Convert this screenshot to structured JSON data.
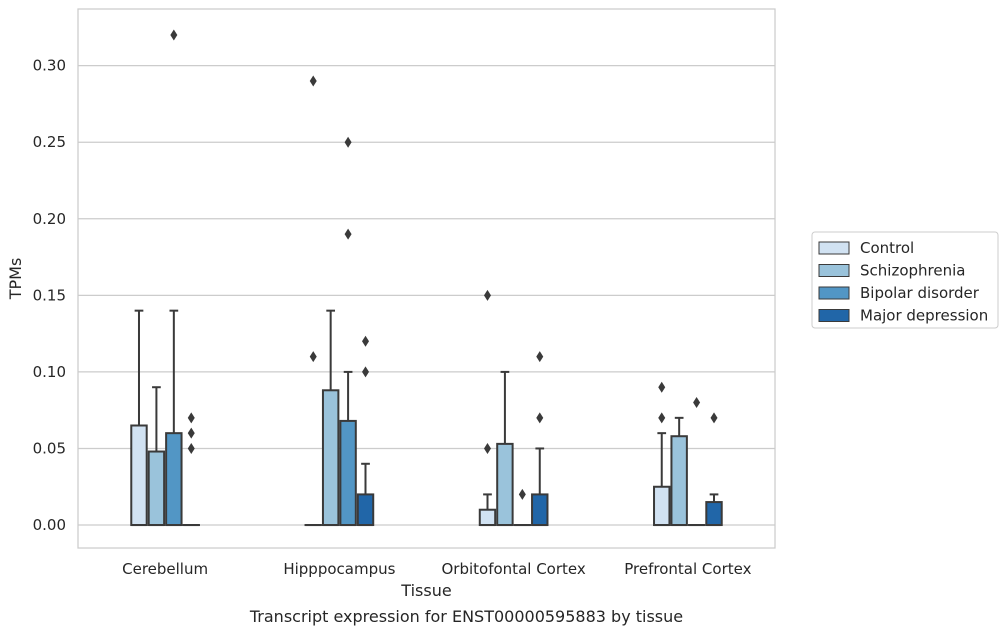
{
  "chart_data": {
    "type": "box",
    "title": "Transcript expression for ENST00000595883 by tissue",
    "xlabel": "Tissue",
    "ylabel": "TPMs",
    "ylim": [
      -0.015,
      0.337
    ],
    "yticks": [
      0.0,
      0.05,
      0.1,
      0.15,
      0.2,
      0.25,
      0.3
    ],
    "ytick_labels": [
      "0.00",
      "0.05",
      "0.10",
      "0.15",
      "0.20",
      "0.25",
      "0.30"
    ],
    "grid": "horizontal",
    "legend_position": "right",
    "categories": [
      "Cerebellum",
      "Hipppocampus",
      "Orbitofontal Cortex",
      "Prefrontal Cortex"
    ],
    "series": [
      {
        "name": "Control",
        "color": "#d1e2f2",
        "boxes": [
          {
            "q1": 0.0,
            "median": 0.0,
            "q3": 0.065,
            "whisker_low": 0.0,
            "whisker_high": 0.14,
            "outliers": []
          },
          {
            "q1": 0.0,
            "median": 0.0,
            "q3": 0.0,
            "whisker_low": 0.0,
            "whisker_high": 0.0,
            "outliers": [
              0.11,
              0.29
            ]
          },
          {
            "q1": 0.0,
            "median": 0.0,
            "q3": 0.01,
            "whisker_low": 0.0,
            "whisker_high": 0.02,
            "outliers": [
              0.05,
              0.15
            ]
          },
          {
            "q1": 0.0,
            "median": 0.0,
            "q3": 0.025,
            "whisker_low": 0.0,
            "whisker_high": 0.06,
            "outliers": [
              0.07,
              0.09
            ]
          }
        ]
      },
      {
        "name": "Schizophrenia",
        "color": "#9ac3db",
        "boxes": [
          {
            "q1": 0.0,
            "median": 0.0,
            "q3": 0.048,
            "whisker_low": 0.0,
            "whisker_high": 0.09,
            "outliers": []
          },
          {
            "q1": 0.0,
            "median": 0.0,
            "q3": 0.088,
            "whisker_low": 0.0,
            "whisker_high": 0.14,
            "outliers": []
          },
          {
            "q1": 0.0,
            "median": 0.0,
            "q3": 0.053,
            "whisker_low": 0.0,
            "whisker_high": 0.1,
            "outliers": []
          },
          {
            "q1": 0.0,
            "median": 0.0,
            "q3": 0.058,
            "whisker_low": 0.0,
            "whisker_high": 0.07,
            "outliers": []
          }
        ]
      },
      {
        "name": "Bipolar disorder",
        "color": "#5296c5",
        "boxes": [
          {
            "q1": 0.0,
            "median": 0.0,
            "q3": 0.06,
            "whisker_low": 0.0,
            "whisker_high": 0.14,
            "outliers": [
              0.32
            ]
          },
          {
            "q1": 0.0,
            "median": 0.0,
            "q3": 0.068,
            "whisker_low": 0.0,
            "whisker_high": 0.1,
            "outliers": [
              0.19,
              0.25
            ]
          },
          {
            "q1": 0.0,
            "median": 0.0,
            "q3": 0.0,
            "whisker_low": 0.0,
            "whisker_high": 0.0,
            "outliers": [
              0.02
            ]
          },
          {
            "q1": 0.0,
            "median": 0.0,
            "q3": 0.0,
            "whisker_low": 0.0,
            "whisker_high": 0.0,
            "outliers": [
              0.08
            ]
          }
        ]
      },
      {
        "name": "Major depression",
        "color": "#2166a8",
        "boxes": [
          {
            "q1": 0.0,
            "median": 0.0,
            "q3": 0.0,
            "whisker_low": 0.0,
            "whisker_high": 0.0,
            "outliers": [
              0.05,
              0.06,
              0.07
            ]
          },
          {
            "q1": 0.0,
            "median": 0.0,
            "q3": 0.02,
            "whisker_low": 0.0,
            "whisker_high": 0.04,
            "outliers": [
              0.1,
              0.12
            ]
          },
          {
            "q1": 0.0,
            "median": 0.0,
            "q3": 0.02,
            "whisker_low": 0.0,
            "whisker_high": 0.05,
            "outliers": [
              0.07,
              0.11
            ]
          },
          {
            "q1": 0.0,
            "median": 0.0,
            "q3": 0.015,
            "whisker_low": 0.0,
            "whisker_high": 0.02,
            "outliers": [
              0.07
            ]
          }
        ]
      }
    ]
  }
}
